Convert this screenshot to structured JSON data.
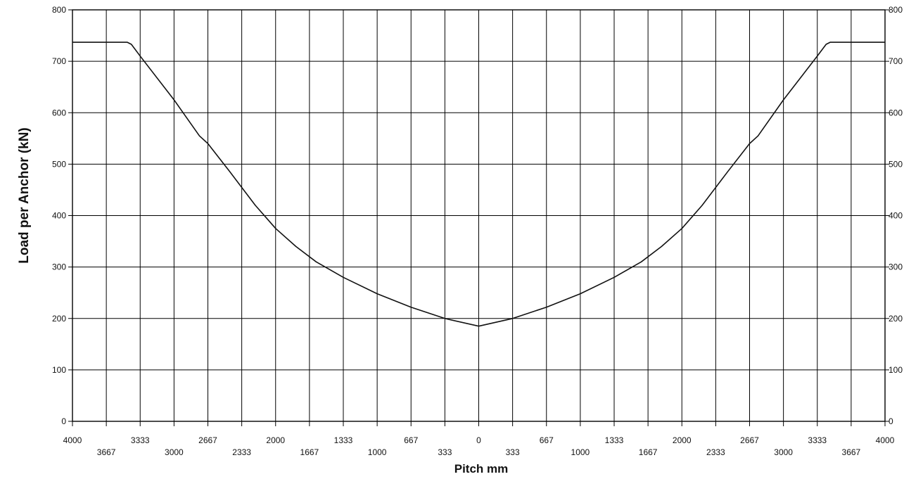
{
  "chart_data": {
    "type": "line",
    "title": "",
    "xlabel": "Pitch mm",
    "ylabel": "Load per Anchor (kN)",
    "ylim": [
      0,
      800
    ],
    "xlim": [
      -4000,
      4000
    ],
    "grid": true,
    "legend": "none",
    "y_ticks": [
      0,
      100,
      200,
      300,
      400,
      500,
      600,
      700,
      800
    ],
    "x_tick_labels_row1": [
      "4000",
      "3333",
      "2667",
      "2000",
      "1333",
      "667",
      "0",
      "667",
      "1333",
      "2000",
      "2667",
      "3333",
      "4000"
    ],
    "x_tick_labels_row2": [
      "3667",
      "3000",
      "2333",
      "1667",
      "1000",
      "333",
      "333",
      "1000",
      "1667",
      "2333",
      "3000",
      "3667"
    ],
    "series": [
      {
        "x": [
          -4000,
          -3460,
          -3420,
          -3333,
          -3000,
          -2750,
          -2667,
          -2450,
          -2200,
          -2000,
          -1800,
          -1600,
          -1333,
          -1000,
          -667,
          -333,
          0,
          333,
          667,
          1000,
          1333,
          1600,
          1800,
          2000,
          2200,
          2450,
          2667,
          2750,
          3000,
          3333,
          3420,
          3460,
          4000
        ],
        "values": [
          737,
          737,
          733,
          710,
          625,
          555,
          540,
          485,
          420,
          375,
          340,
          310,
          280,
          248,
          222,
          200,
          185,
          200,
          222,
          248,
          280,
          310,
          340,
          375,
          420,
          485,
          540,
          555,
          625,
          710,
          733,
          737,
          737
        ]
      }
    ]
  }
}
